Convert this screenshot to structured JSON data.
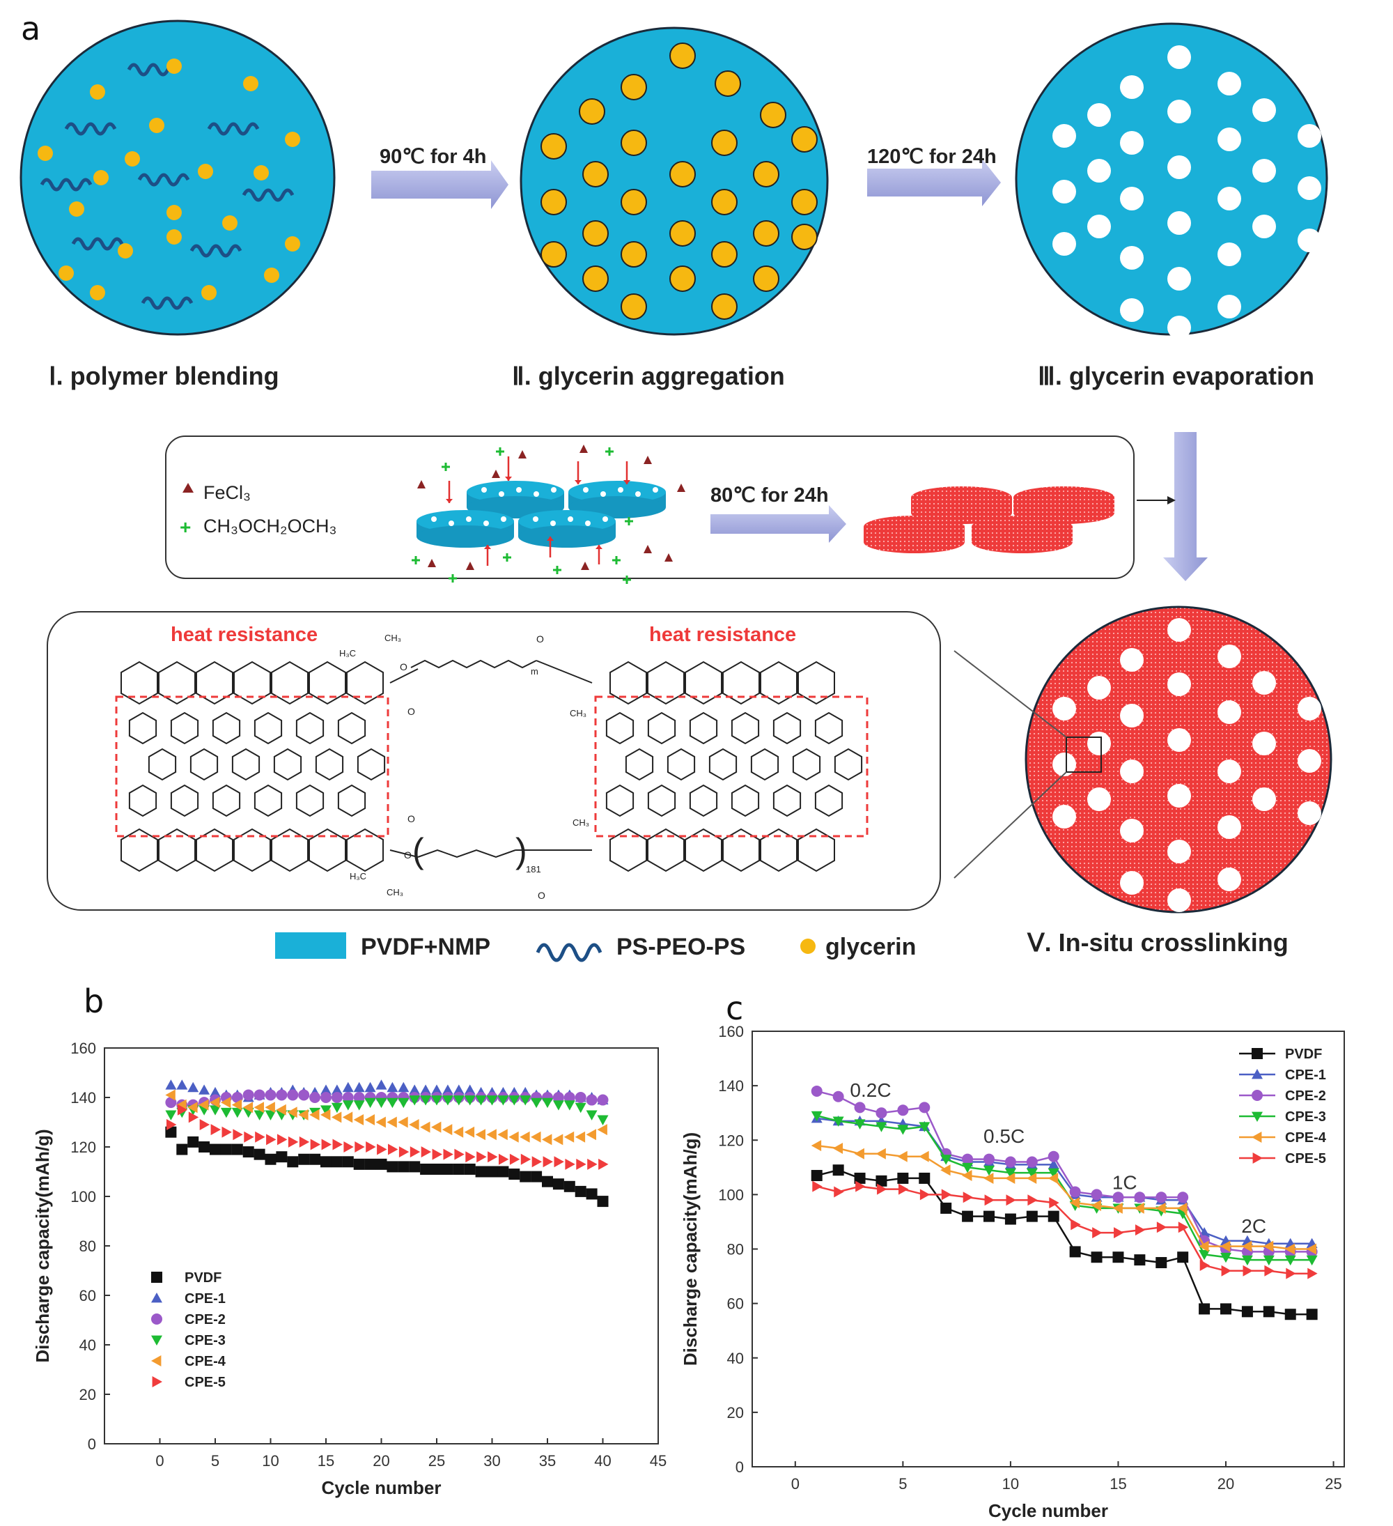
{
  "panels": {
    "a": "a",
    "b": "b",
    "c": "c"
  },
  "colors": {
    "blue": "#1ab0d8",
    "yellow": "#f6b811",
    "red": "#ee3a3a",
    "arrow": "#aeb4e0",
    "chain": "#1d4f86"
  },
  "panel_a": {
    "step1": "Ⅰ. polymer blending",
    "step2": "Ⅱ. glycerin aggregation",
    "step3": "Ⅲ. glycerin evaporation",
    "step5": "Ⅴ. In-situ crosslinking",
    "arrow1": "90℃ for 4h",
    "arrow2": "120℃ for 24h",
    "arrow3": "80℃ for 24h",
    "fecl3": "FeCl₃",
    "ch3": "CH₃OCH₂OCH₃",
    "heat_left": "heat resistance",
    "heat_right": "heat resistance",
    "legend": {
      "pvdf": "PVDF+NMP",
      "ps": "PS-PEO-PS",
      "gly": "glycerin"
    },
    "chem_labels": {
      "ch3": "CH₃",
      "h3c": "H₃C",
      "o": "O",
      "m": "m",
      "n": "181"
    }
  },
  "chart_data": [
    {
      "type": "scatter",
      "ylabel": "Discharge capacity(mAh/g)",
      "xlabel": "Cycle number",
      "xlim": [
        -5,
        45
      ],
      "ylim": [
        0,
        160
      ],
      "xticks": [
        0,
        5,
        10,
        15,
        20,
        25,
        30,
        35,
        40,
        45
      ],
      "yticks": [
        0,
        20,
        40,
        60,
        80,
        100,
        120,
        140,
        160
      ],
      "legend_position": "bottom-left",
      "series": [
        {
          "name": "PVDF",
          "color": "#111111",
          "marker": "square",
          "first": 126,
          "values": [
            121,
            119,
            122,
            120,
            119,
            119,
            119,
            118,
            117,
            115,
            116,
            114,
            115,
            115,
            114,
            114,
            114,
            113,
            113,
            113,
            112,
            112,
            112,
            111,
            111,
            111,
            111,
            111,
            110,
            110,
            110,
            109,
            108,
            108,
            106,
            105,
            104,
            102,
            101,
            98
          ]
        },
        {
          "name": "CPE-1",
          "color": "#4b5fc4",
          "marker": "triangle-up",
          "first": 145,
          "values": [
            145,
            145,
            144,
            143,
            142,
            141,
            141,
            140,
            141,
            142,
            142,
            143,
            142,
            142,
            143,
            143,
            144,
            144,
            144,
            145,
            144,
            144,
            143,
            143,
            143,
            143,
            143,
            143,
            142,
            142,
            142,
            142,
            142,
            141,
            141,
            141,
            141,
            140,
            140,
            139
          ]
        },
        {
          "name": "CPE-2",
          "color": "#9b59c9",
          "marker": "circle",
          "first": 138,
          "values": [
            137,
            137,
            137,
            138,
            139,
            140,
            140,
            141,
            141,
            141,
            141,
            141,
            141,
            140,
            140,
            140,
            140,
            140,
            140,
            140,
            140,
            140,
            140,
            140,
            140,
            140,
            140,
            140,
            140,
            140,
            140,
            140,
            140,
            140,
            140,
            140,
            140,
            140,
            139,
            139
          ]
        },
        {
          "name": "CPE-3",
          "color": "#1dbb33",
          "marker": "triangle-down",
          "first": 133,
          "values": [
            133,
            134,
            135,
            135,
            135,
            134,
            134,
            134,
            133,
            133,
            133,
            133,
            133,
            134,
            135,
            136,
            137,
            137,
            138,
            138,
            138,
            138,
            139,
            139,
            139,
            139,
            139,
            139,
            139,
            139,
            139,
            139,
            139,
            138,
            138,
            137,
            137,
            136,
            133,
            131
          ]
        },
        {
          "name": "CPE-4",
          "color": "#f39b2f",
          "marker": "triangle-left",
          "first": 141,
          "values": [
            139,
            137,
            136,
            137,
            138,
            138,
            137,
            136,
            136,
            136,
            135,
            134,
            133,
            133,
            133,
            132,
            132,
            131,
            131,
            130,
            130,
            130,
            129,
            128,
            128,
            127,
            126,
            126,
            125,
            125,
            125,
            124,
            124,
            124,
            123,
            123,
            124,
            124,
            125,
            127
          ]
        },
        {
          "name": "CPE-5",
          "color": "#f03c3c",
          "marker": "triangle-right",
          "first": 129,
          "values": [
            132,
            135,
            132,
            129,
            127,
            126,
            125,
            124,
            124,
            123,
            123,
            122,
            122,
            121,
            121,
            121,
            120,
            120,
            120,
            119,
            119,
            118,
            118,
            118,
            117,
            117,
            117,
            116,
            116,
            116,
            115,
            115,
            115,
            114,
            114,
            114,
            113,
            113,
            113,
            113
          ]
        }
      ]
    },
    {
      "type": "line",
      "ylabel": "Discharge capacity(mAh/g)",
      "xlabel": "Cycle number",
      "xlim": [
        -2,
        25.5
      ],
      "ylim": [
        0,
        160
      ],
      "xticks": [
        0,
        5,
        10,
        15,
        20,
        25
      ],
      "yticks": [
        0,
        20,
        40,
        60,
        80,
        100,
        120,
        140,
        160
      ],
      "legend_position": "top-right",
      "rate_labels": [
        {
          "text": "0.2C",
          "x": 3.5,
          "y": 136
        },
        {
          "text": "0.5C",
          "x": 9.7,
          "y": 119
        },
        {
          "text": "1C",
          "x": 15.3,
          "y": 102
        },
        {
          "text": "2C",
          "x": 21.3,
          "y": 86
        }
      ],
      "series": [
        {
          "name": "PVDF",
          "color": "#111111",
          "marker": "square",
          "x": [
            1,
            2,
            3,
            4,
            5,
            6,
            7,
            8,
            9,
            10,
            11,
            12,
            13,
            14,
            15,
            16,
            17,
            18,
            19,
            20,
            21,
            22,
            23,
            24
          ],
          "values": [
            107,
            109,
            106,
            105,
            106,
            106,
            95,
            92,
            92,
            91,
            92,
            92,
            79,
            77,
            77,
            76,
            75,
            77,
            58,
            58,
            57,
            57,
            56,
            56
          ]
        },
        {
          "name": "CPE-1",
          "color": "#4b5fc4",
          "marker": "triangle-up",
          "x": [
            1,
            2,
            3,
            4,
            5,
            6,
            7,
            8,
            9,
            10,
            11,
            12,
            13,
            14,
            15,
            16,
            17,
            18,
            19,
            20,
            21,
            22,
            23,
            24
          ],
          "values": [
            128,
            127,
            127,
            127,
            126,
            125,
            114,
            112,
            112,
            111,
            111,
            111,
            100,
            99,
            99,
            99,
            98,
            98,
            86,
            83,
            83,
            82,
            82,
            82
          ]
        },
        {
          "name": "CPE-2",
          "color": "#9b59c9",
          "marker": "circle",
          "x": [
            1,
            2,
            3,
            4,
            5,
            6,
            7,
            8,
            9,
            10,
            11,
            12,
            13,
            14,
            15,
            16,
            17,
            18,
            19,
            20,
            21,
            22,
            23,
            24
          ],
          "values": [
            138,
            136,
            132,
            130,
            131,
            132,
            115,
            113,
            113,
            112,
            112,
            114,
            101,
            100,
            99,
            99,
            99,
            99,
            83,
            80,
            79,
            79,
            79,
            79
          ]
        },
        {
          "name": "CPE-3",
          "color": "#1dbb33",
          "marker": "triangle-down",
          "x": [
            1,
            2,
            3,
            4,
            5,
            6,
            7,
            8,
            9,
            10,
            11,
            12,
            13,
            14,
            15,
            16,
            17,
            18,
            19,
            20,
            21,
            22,
            23,
            24
          ],
          "values": [
            129,
            127,
            126,
            125,
            124,
            125,
            113,
            110,
            109,
            108,
            108,
            108,
            96,
            95,
            95,
            95,
            94,
            93,
            78,
            77,
            76,
            76,
            76,
            76
          ]
        },
        {
          "name": "CPE-4",
          "color": "#f39b2f",
          "marker": "triangle-left",
          "x": [
            1,
            2,
            3,
            4,
            5,
            6,
            7,
            8,
            9,
            10,
            11,
            12,
            13,
            14,
            15,
            16,
            17,
            18,
            19,
            20,
            21,
            22,
            23,
            24
          ],
          "values": [
            118,
            117,
            115,
            115,
            114,
            114,
            109,
            107,
            106,
            106,
            106,
            106,
            97,
            96,
            95,
            95,
            95,
            95,
            81,
            81,
            81,
            81,
            80,
            80
          ]
        },
        {
          "name": "CPE-5",
          "color": "#f03c3c",
          "marker": "triangle-right",
          "x": [
            1,
            2,
            3,
            4,
            5,
            6,
            7,
            8,
            9,
            10,
            11,
            12,
            13,
            14,
            15,
            16,
            17,
            18,
            19,
            20,
            21,
            22,
            23,
            24
          ],
          "values": [
            103,
            101,
            103,
            102,
            102,
            100,
            100,
            99,
            98,
            98,
            98,
            97,
            89,
            86,
            86,
            87,
            88,
            88,
            74,
            72,
            72,
            72,
            71,
            71
          ]
        }
      ]
    }
  ]
}
